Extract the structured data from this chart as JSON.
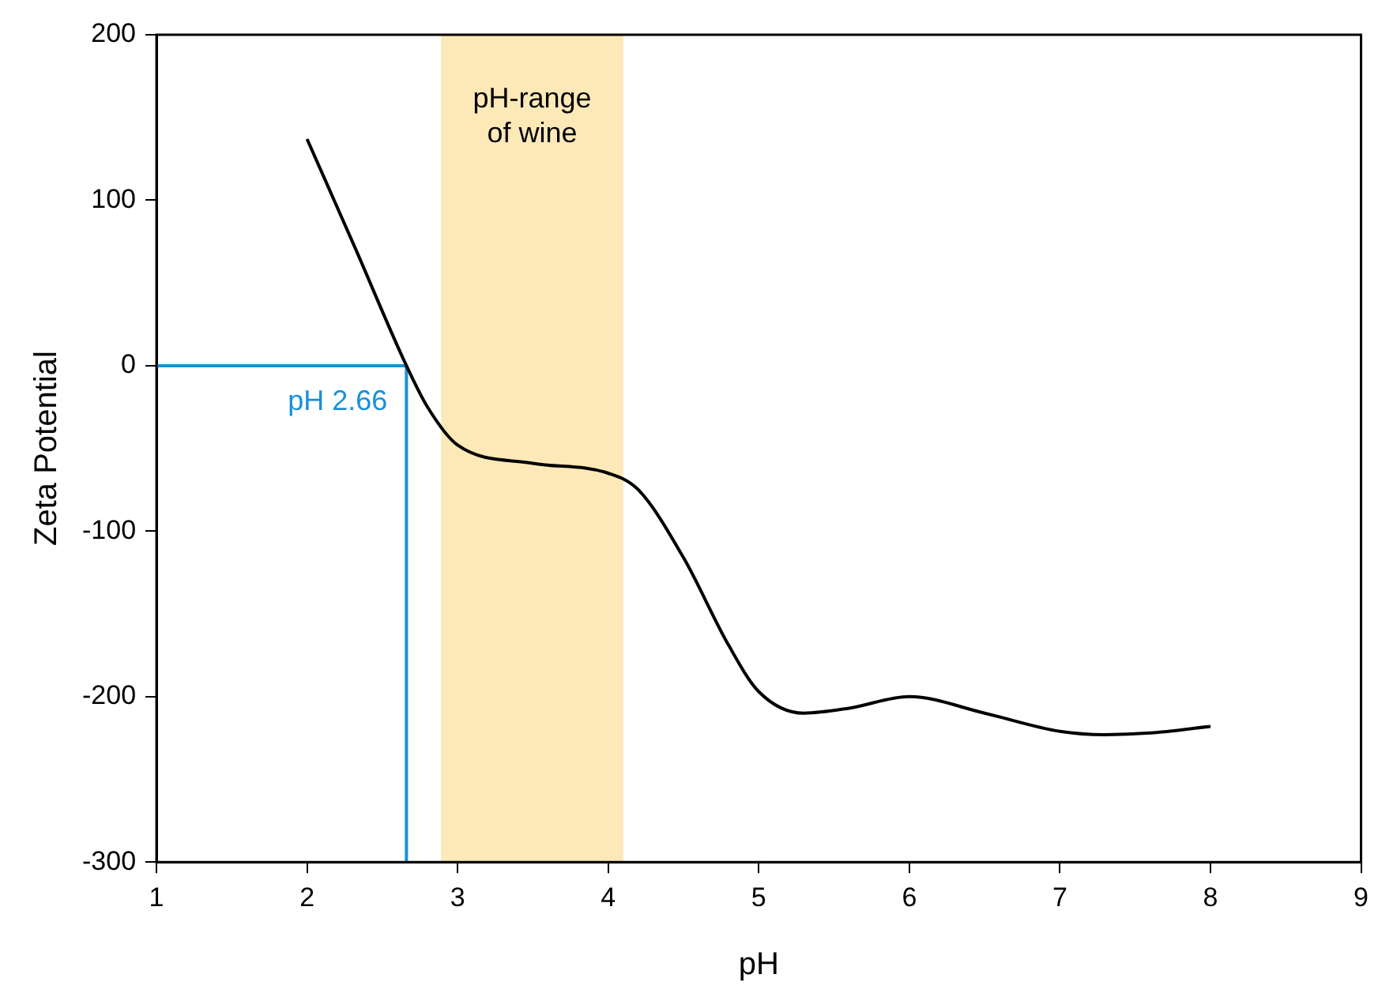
{
  "chart_data": {
    "type": "line",
    "xlabel": "pH",
    "ylabel": "Zeta Potential",
    "xlim": [
      1,
      9
    ],
    "xticks": [
      1,
      2,
      3,
      4,
      5,
      6,
      7,
      8,
      9
    ],
    "ylim": [
      -300,
      200
    ],
    "yticks": [
      -300,
      -200,
      -100,
      0,
      100,
      200
    ],
    "grid": false,
    "legend": false,
    "marker": "none",
    "line_style": "solid",
    "series": [
      {
        "color": "#000000",
        "x": [
          2.0,
          2.32,
          2.66,
          2.8,
          3.0,
          3.5,
          4.0,
          4.2,
          4.5,
          4.8,
          5.0,
          5.3,
          5.6,
          6.0,
          6.5,
          7.0,
          7.3,
          7.6,
          8.0
        ],
        "values": [
          137,
          71,
          0,
          -25,
          -48,
          -59,
          -65,
          -75,
          -116,
          -169,
          -197,
          -210,
          -207,
          -200,
          -210,
          -221,
          -223,
          -222,
          -218
        ]
      },
      {
        "color": "#1a90d8",
        "x": [
          1,
          2.66,
          2.66
        ],
        "values": [
          0,
          0,
          -300
        ]
      }
    ],
    "bands": [
      {
        "axis": "x",
        "from": 2.89,
        "to": 4.1,
        "label": "pH-range\nof wine",
        "color": "#fde9b8"
      }
    ],
    "annotations": [
      {
        "text": "pH 2.66",
        "x": 2.66,
        "y": 0
      }
    ]
  }
}
